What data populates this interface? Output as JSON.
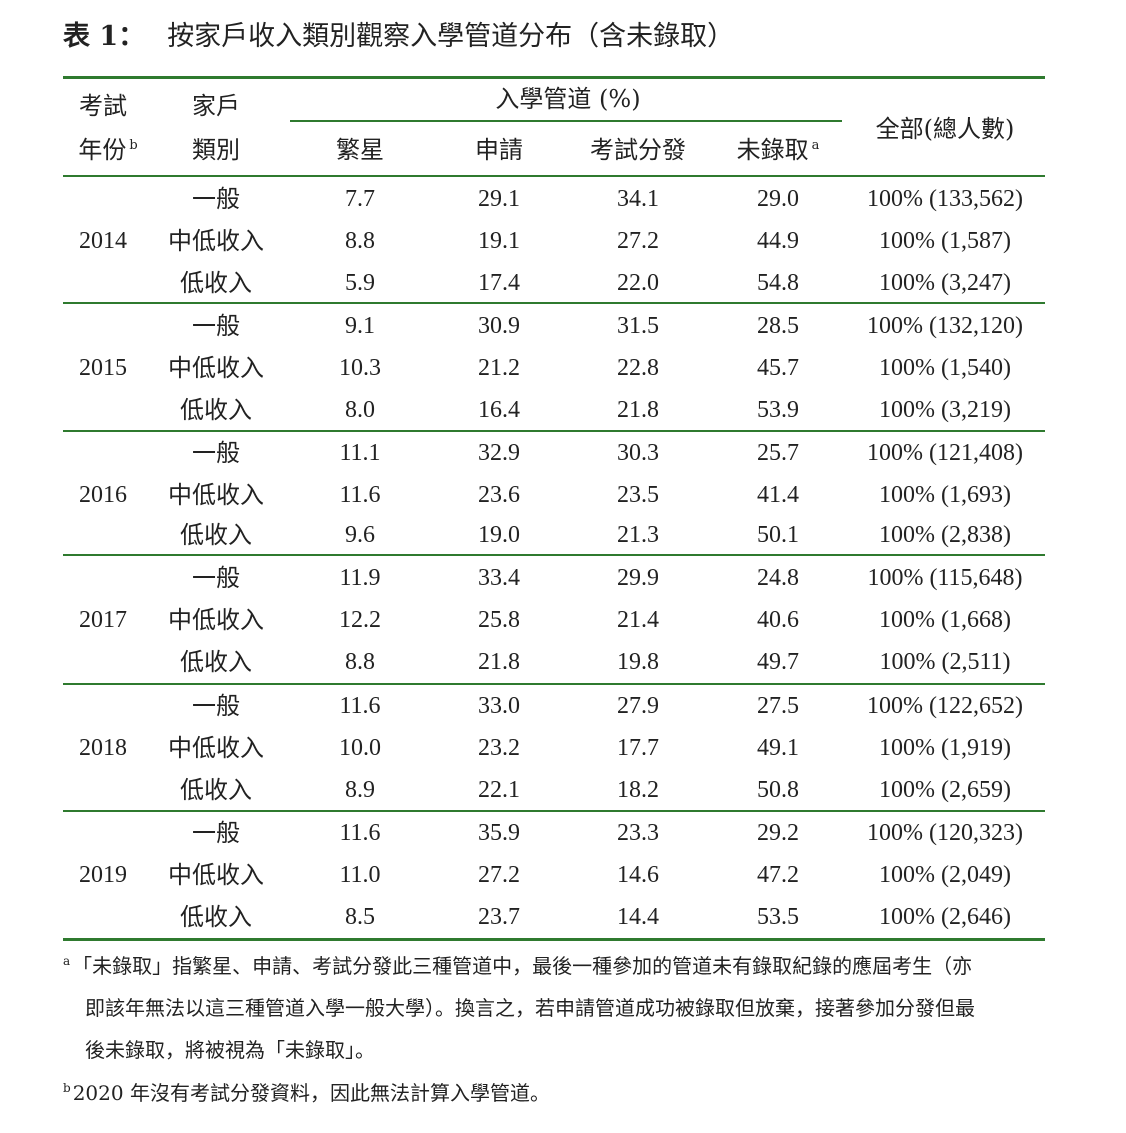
{
  "caption": {
    "label": "表 1：",
    "title": "按家戶收入類別觀察入學管道分布（含未錄取）"
  },
  "header": {
    "year_line1": "考試",
    "year_line2": "年份",
    "year_sup": "b",
    "cat_line1": "家戶",
    "cat_line2": "類別",
    "group": "入學管道  (%)",
    "cols": [
      "繁星",
      "申請",
      "考試分發",
      "未錄取"
    ],
    "unadmitted_sup": "a",
    "total": "全部(總人數)"
  },
  "blocks": [
    {
      "year": "2014",
      "rows": [
        {
          "cat": "一般",
          "v": [
            "7.7",
            "29.1",
            "34.1",
            "29.0"
          ],
          "total": "100% (133,562)"
        },
        {
          "cat": "中低收入",
          "v": [
            "8.8",
            "19.1",
            "27.2",
            "44.9"
          ],
          "total": "100%  (1,587)"
        },
        {
          "cat": "低收入",
          "v": [
            "5.9",
            "17.4",
            "22.0",
            "54.8"
          ],
          "total": "100%  (3,247)"
        }
      ]
    },
    {
      "year": "2015",
      "rows": [
        {
          "cat": "一般",
          "v": [
            "9.1",
            "30.9",
            "31.5",
            "28.5"
          ],
          "total": "100% (132,120)"
        },
        {
          "cat": "中低收入",
          "v": [
            "10.3",
            "21.2",
            "22.8",
            "45.7"
          ],
          "total": "100%  (1,540)"
        },
        {
          "cat": "低收入",
          "v": [
            "8.0",
            "16.4",
            "21.8",
            "53.9"
          ],
          "total": "100%  (3,219)"
        }
      ]
    },
    {
      "year": "2016",
      "rows": [
        {
          "cat": "一般",
          "v": [
            "11.1",
            "32.9",
            "30.3",
            "25.7"
          ],
          "total": "100% (121,408)"
        },
        {
          "cat": "中低收入",
          "v": [
            "11.6",
            "23.6",
            "23.5",
            "41.4"
          ],
          "total": "100%  (1,693)"
        },
        {
          "cat": "低收入",
          "v": [
            "9.6",
            "19.0",
            "21.3",
            "50.1"
          ],
          "total": "100%  (2,838)"
        }
      ]
    },
    {
      "year": "2017",
      "rows": [
        {
          "cat": "一般",
          "v": [
            "11.9",
            "33.4",
            "29.9",
            "24.8"
          ],
          "total": "100% (115,648)"
        },
        {
          "cat": "中低收入",
          "v": [
            "12.2",
            "25.8",
            "21.4",
            "40.6"
          ],
          "total": "100%  (1,668)"
        },
        {
          "cat": "低收入",
          "v": [
            "8.8",
            "21.8",
            "19.8",
            "49.7"
          ],
          "total": "100%  (2,511)"
        }
      ]
    },
    {
      "year": "2018",
      "rows": [
        {
          "cat": "一般",
          "v": [
            "11.6",
            "33.0",
            "27.9",
            "27.5"
          ],
          "total": "100% (122,652)"
        },
        {
          "cat": "中低收入",
          "v": [
            "10.0",
            "23.2",
            "17.7",
            "49.1"
          ],
          "total": "100%  (1,919)"
        },
        {
          "cat": "低收入",
          "v": [
            "8.9",
            "22.1",
            "18.2",
            "50.8"
          ],
          "total": "100%  (2,659)"
        }
      ]
    },
    {
      "year": "2019",
      "rows": [
        {
          "cat": "一般",
          "v": [
            "11.6",
            "35.9",
            "23.3",
            "29.2"
          ],
          "total": "100%  (120,323)"
        },
        {
          "cat": "中低收入",
          "v": [
            "11.0",
            "27.2",
            "14.6",
            "47.2"
          ],
          "total": "100%  (2,049)"
        },
        {
          "cat": "低收入",
          "v": [
            "8.5",
            "23.7",
            "14.4",
            "53.5"
          ],
          "total": "100%  (2,646)"
        }
      ]
    }
  ],
  "notes": {
    "a_mark": "a",
    "a_line1": "「未錄取」指繁星、申請、考試分發此三種管道中，最後一種參加的管道未有錄取紀錄的應屆考生（亦",
    "a_line2": "即該年無法以這三種管道入學一般大學）。換言之，若申請管道成功被錄取但放棄，接著參加分發但最",
    "a_line3": "後未錄取，將被視為「未錄取」。",
    "b_mark": "b",
    "b_line": "2020 年沒有考試分發資料，因此無法計算入學管道。"
  }
}
